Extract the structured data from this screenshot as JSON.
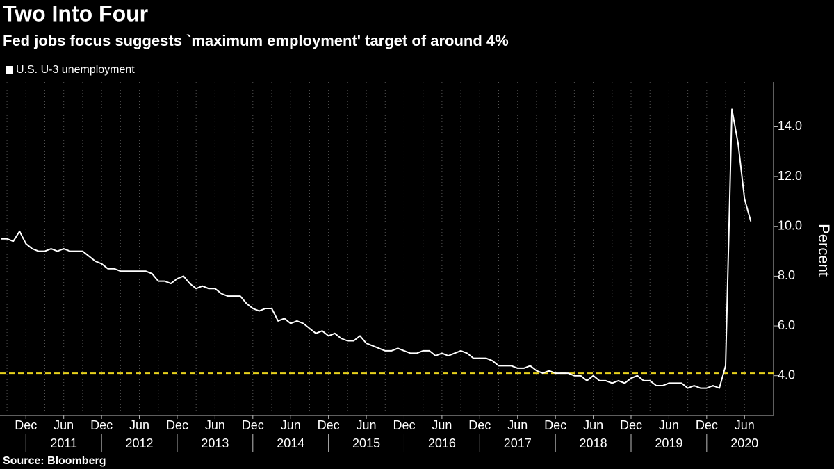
{
  "chart_data": {
    "type": "line",
    "title": "Two Into Four",
    "subtitle": "Fed jobs focus suggests `maximum employment' target of around 4%",
    "source": "Source: Bloomberg",
    "y_label": "Percent",
    "x": [
      "2010-08",
      "2010-09",
      "2010-10",
      "2010-11",
      "2010-12",
      "2011-01",
      "2011-02",
      "2011-03",
      "2011-04",
      "2011-05",
      "2011-06",
      "2011-07",
      "2011-08",
      "2011-09",
      "2011-10",
      "2011-11",
      "2011-12",
      "2012-01",
      "2012-02",
      "2012-03",
      "2012-04",
      "2012-05",
      "2012-06",
      "2012-07",
      "2012-08",
      "2012-09",
      "2012-10",
      "2012-11",
      "2012-12",
      "2013-01",
      "2013-02",
      "2013-03",
      "2013-04",
      "2013-05",
      "2013-06",
      "2013-07",
      "2013-08",
      "2013-09",
      "2013-10",
      "2013-11",
      "2013-12",
      "2014-01",
      "2014-02",
      "2014-03",
      "2014-04",
      "2014-05",
      "2014-06",
      "2014-07",
      "2014-08",
      "2014-09",
      "2014-10",
      "2014-11",
      "2014-12",
      "2015-01",
      "2015-02",
      "2015-03",
      "2015-04",
      "2015-05",
      "2015-06",
      "2015-07",
      "2015-08",
      "2015-09",
      "2015-10",
      "2015-11",
      "2015-12",
      "2016-01",
      "2016-02",
      "2016-03",
      "2016-04",
      "2016-05",
      "2016-06",
      "2016-07",
      "2016-08",
      "2016-09",
      "2016-10",
      "2016-11",
      "2016-12",
      "2017-01",
      "2017-02",
      "2017-03",
      "2017-04",
      "2017-05",
      "2017-06",
      "2017-07",
      "2017-08",
      "2017-09",
      "2017-10",
      "2017-11",
      "2017-12",
      "2018-01",
      "2018-02",
      "2018-03",
      "2018-04",
      "2018-05",
      "2018-06",
      "2018-07",
      "2018-08",
      "2018-09",
      "2018-10",
      "2018-11",
      "2018-12",
      "2019-01",
      "2019-02",
      "2019-03",
      "2019-04",
      "2019-05",
      "2019-06",
      "2019-07",
      "2019-08",
      "2019-09",
      "2019-10",
      "2019-11",
      "2019-12",
      "2020-01",
      "2020-02",
      "2020-03",
      "2020-04",
      "2020-05",
      "2020-06",
      "2020-07"
    ],
    "series": [
      {
        "name": "U.S. U-3 unemployment",
        "color": "#ffffff",
        "values": [
          9.5,
          9.5,
          9.4,
          9.8,
          9.3,
          9.1,
          9.0,
          9.0,
          9.1,
          9.0,
          9.1,
          9.0,
          9.0,
          9.0,
          8.8,
          8.6,
          8.5,
          8.3,
          8.3,
          8.2,
          8.2,
          8.2,
          8.2,
          8.2,
          8.1,
          7.8,
          7.8,
          7.7,
          7.9,
          8.0,
          7.7,
          7.5,
          7.6,
          7.5,
          7.5,
          7.3,
          7.2,
          7.2,
          7.2,
          6.9,
          6.7,
          6.6,
          6.7,
          6.7,
          6.2,
          6.3,
          6.1,
          6.2,
          6.1,
          5.9,
          5.7,
          5.8,
          5.6,
          5.7,
          5.5,
          5.4,
          5.4,
          5.6,
          5.3,
          5.2,
          5.1,
          5.0,
          5.0,
          5.1,
          5.0,
          4.9,
          4.9,
          5.0,
          5.0,
          4.8,
          4.9,
          4.8,
          4.9,
          5.0,
          4.9,
          4.7,
          4.7,
          4.7,
          4.6,
          4.4,
          4.4,
          4.4,
          4.3,
          4.3,
          4.4,
          4.2,
          4.1,
          4.2,
          4.1,
          4.1,
          4.1,
          4.0,
          4.0,
          3.8,
          4.0,
          3.8,
          3.8,
          3.7,
          3.8,
          3.7,
          3.9,
          4.0,
          3.8,
          3.8,
          3.6,
          3.6,
          3.7,
          3.7,
          3.7,
          3.5,
          3.6,
          3.5,
          3.5,
          3.6,
          3.5,
          4.4,
          14.7,
          13.3,
          11.1,
          10.2
        ]
      }
    ],
    "reference_line": {
      "value": 4.1,
      "color": "#e8d21d"
    },
    "ylim": [
      2.4,
      15.8
    ],
    "yticks": [
      {
        "value": 4,
        "label": "4.0"
      },
      {
        "value": 6,
        "label": "6.0"
      },
      {
        "value": 8,
        "label": "8.0"
      },
      {
        "value": 10,
        "label": "10.0"
      },
      {
        "value": 12,
        "label": "12.0"
      },
      {
        "value": 14,
        "label": "14.0"
      }
    ],
    "xticks": [
      {
        "value": "2010-12",
        "label": "Dec"
      },
      {
        "value": "2011-06",
        "label": "Jun"
      },
      {
        "value": "2011-12",
        "label": "Dec"
      },
      {
        "value": "2012-06",
        "label": "Jun"
      },
      {
        "value": "2012-12",
        "label": "Dec"
      },
      {
        "value": "2013-06",
        "label": "Jun"
      },
      {
        "value": "2013-12",
        "label": "Dec"
      },
      {
        "value": "2014-06",
        "label": "Jun"
      },
      {
        "value": "2014-12",
        "label": "Dec"
      },
      {
        "value": "2015-06",
        "label": "Jun"
      },
      {
        "value": "2015-12",
        "label": "Dec"
      },
      {
        "value": "2016-06",
        "label": "Jun"
      },
      {
        "value": "2016-12",
        "label": "Dec"
      },
      {
        "value": "2017-06",
        "label": "Jun"
      },
      {
        "value": "2017-12",
        "label": "Dec"
      },
      {
        "value": "2018-06",
        "label": "Jun"
      },
      {
        "value": "2018-12",
        "label": "Dec"
      },
      {
        "value": "2019-06",
        "label": "Jun"
      },
      {
        "value": "2019-12",
        "label": "Dec"
      },
      {
        "value": "2020-06",
        "label": "Jun"
      }
    ],
    "years": [
      "2011",
      "2012",
      "2013",
      "2014",
      "2015",
      "2016",
      "2017",
      "2018",
      "2019",
      "2020"
    ],
    "grid": true,
    "legend": "top-left"
  }
}
